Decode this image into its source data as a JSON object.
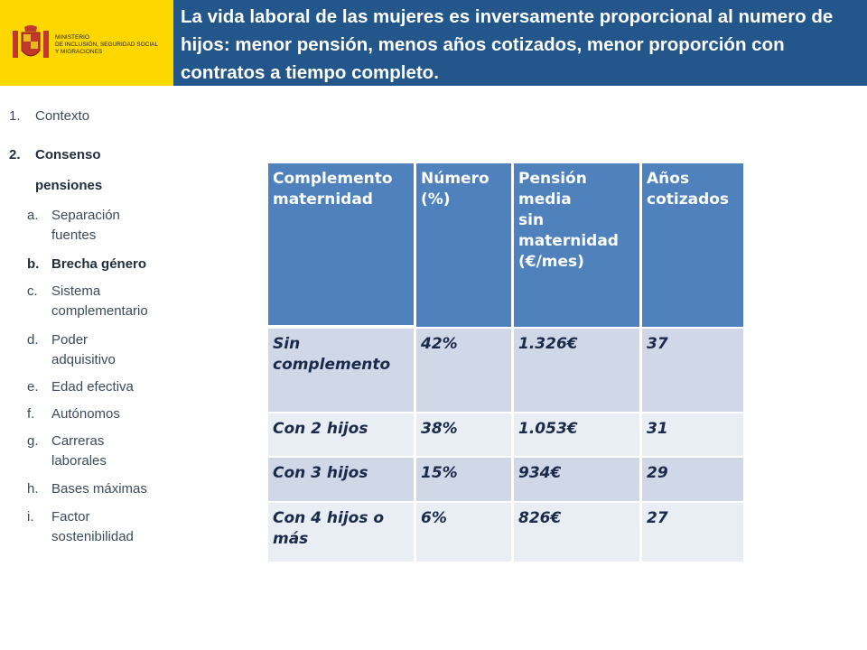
{
  "header": {
    "ministry": [
      "MINISTERIO",
      "DE INCLUSIÓN, SEGURIDAD SOCIAL",
      "Y MIGRACIONES"
    ],
    "title": "La vida laboral de las mujeres es inversamente proporcional al numero de hijos: menor pensión, menos años cotizados, menor proporción con contratos a tiempo completo."
  },
  "nav": [
    {
      "num": "1.",
      "lines": [
        "Contexto"
      ]
    },
    {
      "num": "2.",
      "lines": [
        "Consenso",
        "pensiones"
      ],
      "bold": true
    },
    {
      "num": "a.",
      "lines": [
        "Separación",
        "fuentes"
      ],
      "sub": true
    },
    {
      "num": "b.",
      "lines": [
        "Brecha género"
      ],
      "sub": true,
      "bold": true
    },
    {
      "num": "c.",
      "lines": [
        "Sistema",
        "complementario"
      ],
      "sub": true
    },
    {
      "num": "d.",
      "lines": [
        "Poder",
        "adquisitivo"
      ],
      "sub": true
    },
    {
      "num": "e.",
      "lines": [
        "Edad efectiva"
      ],
      "sub": true
    },
    {
      "num": "f.",
      "lines": [
        "Autónomos"
      ],
      "sub": true
    },
    {
      "num": "g.",
      "lines": [
        "Carreras",
        "laborales"
      ],
      "sub": true
    },
    {
      "num": "h.",
      "lines": [
        "Bases máximas"
      ],
      "sub": true
    },
    {
      "num": "i.",
      "lines": [
        "Factor",
        "sostenibilidad"
      ],
      "sub": true
    }
  ],
  "table": {
    "headers": [
      [
        "Complemento",
        "maternidad"
      ],
      [
        "Número",
        "(%)"
      ],
      [
        "Pensión media",
        "sin",
        "maternidad",
        "(€/mes)"
      ],
      [
        "Años",
        "cotizados"
      ]
    ],
    "rows": [
      [
        "Sin complemento",
        "42%",
        "1.326€",
        "37"
      ],
      [
        "Con 2 hijos",
        "38%",
        "1.053€",
        "31"
      ],
      [
        "Con 3 hijos",
        "15%",
        "934€",
        "29"
      ],
      [
        "Con 4 hijos o más",
        "6%",
        "826€",
        "27"
      ]
    ]
  }
}
